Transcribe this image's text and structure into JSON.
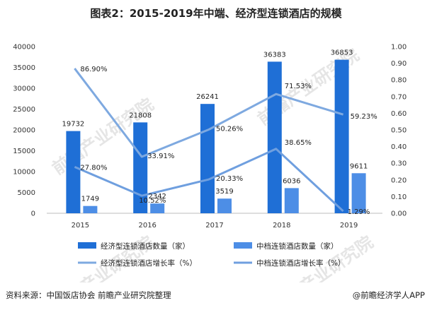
{
  "title": "图表2：2015-2019年中端、经济型连锁酒店的规模",
  "footer": {
    "source": "资料来源：中国饭店协会 前瞻产业研究院整理",
    "brand": "@前瞻经济学人APP"
  },
  "watermark": "前瞻产业研究院",
  "colors": {
    "bar_economy": "#1f6fd6",
    "bar_midscale": "#4d8ee6",
    "line_economy": "#7ea9e0",
    "line_midscale": "#6f9fdf",
    "axis": "#bdbdbd"
  },
  "chart_data": {
    "type": "bar",
    "categories": [
      "2015",
      "2016",
      "2017",
      "2018",
      "2019"
    ],
    "ylim": [
      0,
      40000
    ],
    "yticks": [
      "0",
      "5000",
      "10000",
      "15000",
      "20000",
      "25000",
      "30000",
      "35000",
      "40000"
    ],
    "y2lim": [
      0,
      1
    ],
    "y2ticks": [
      "0.00",
      "0.10",
      "0.20",
      "0.30",
      "0.40",
      "0.50",
      "0.60",
      "0.70",
      "0.80",
      "0.90",
      "1.00"
    ],
    "series": [
      {
        "name": "经济型连锁酒店数量（家）",
        "type": "bar",
        "axis": "left",
        "values": [
          19732,
          21808,
          26241,
          36383,
          36853
        ],
        "labels": [
          "19732",
          "21808",
          "26241",
          "36383",
          "36853"
        ]
      },
      {
        "name": "中档连锁酒店数量（家）",
        "type": "bar",
        "axis": "left",
        "values": [
          1749,
          2342,
          3519,
          6036,
          9611
        ],
        "labels": [
          "1749",
          "2342",
          "3519",
          "6036",
          "9611"
        ]
      },
      {
        "name": "经济型连锁酒店增长率（%）",
        "type": "line",
        "axis": "right",
        "values": [
          0.869,
          0.3391,
          0.5026,
          0.7153,
          0.5923
        ],
        "labels": [
          "86.90%",
          "33.91%",
          "50.26%",
          "71.53%",
          "59.23%"
        ]
      },
      {
        "name": "中档连锁酒店增长率（%）",
        "type": "line",
        "axis": "right",
        "values": [
          0.278,
          0.1052,
          0.2033,
          0.3865,
          0.0129
        ],
        "labels": [
          "27.80%",
          "10.52%",
          "20.33%",
          "38.65%",
          "1.29%"
        ]
      }
    ],
    "legend_position": "bottom",
    "grid": false
  }
}
